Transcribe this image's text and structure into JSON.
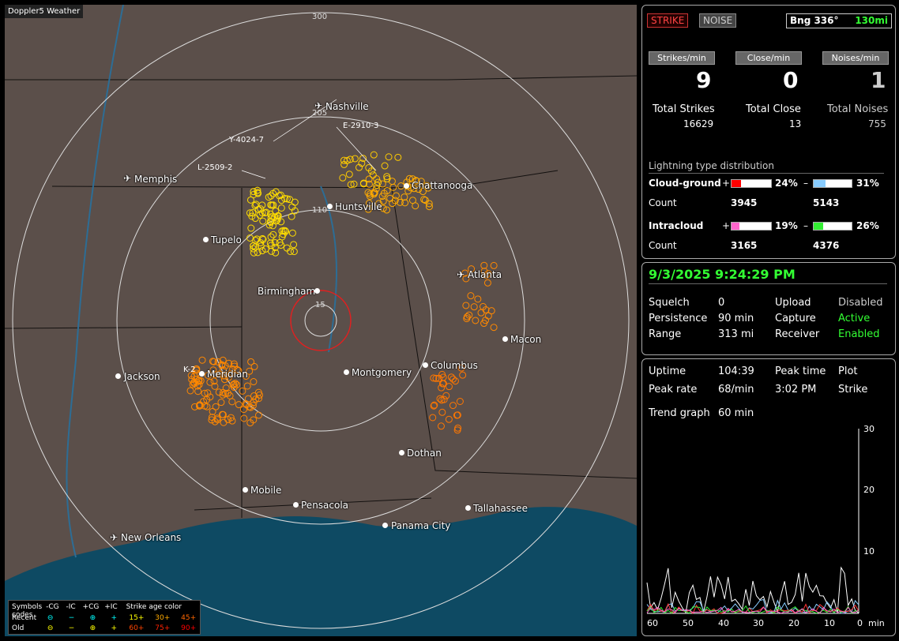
{
  "brand": "Doppler5 Weather",
  "map": {
    "cities": [
      {
        "name": "Nashville",
        "airport": true
      },
      {
        "name": "Memphis",
        "airport": true
      },
      {
        "name": "Huntsville",
        "airport": false
      },
      {
        "name": "Chattanooga",
        "airport": false
      },
      {
        "name": "Tupelo",
        "airport": false
      },
      {
        "name": "Birmingham",
        "airport": false
      },
      {
        "name": "Atlanta",
        "airport": true
      },
      {
        "name": "Macon",
        "airport": false
      },
      {
        "name": "Jackson",
        "airport": false
      },
      {
        "name": "Meridian",
        "airport": false
      },
      {
        "name": "Montgomery",
        "airport": false
      },
      {
        "name": "Columbus",
        "airport": false
      },
      {
        "name": "Dothan",
        "airport": false
      },
      {
        "name": "Mobile",
        "airport": false
      },
      {
        "name": "Pensacola",
        "airport": false
      },
      {
        "name": "Tallahassee",
        "airport": false
      },
      {
        "name": "Panama City",
        "airport": false
      },
      {
        "name": "New Orleans",
        "airport": true
      }
    ],
    "range_labels": [
      "300",
      "205",
      "110",
      "15"
    ],
    "flight_labels": [
      "Y-4024-7",
      "L-2509-2",
      "E-2910-3",
      "K-2"
    ]
  },
  "legend": {
    "title_symbols": "Symbols",
    "cols": [
      "-CG",
      "-IC",
      "+CG",
      "+IC"
    ],
    "age_title": "Strike age color codes",
    "recent": "Recent",
    "old": "Old",
    "recent_ages": [
      "15+",
      "30+",
      "45+"
    ],
    "old_ages": [
      "60+",
      "75+",
      "90+"
    ],
    "colors_recent": [
      "#ffff00",
      "#ffaa00",
      "#ff6600"
    ],
    "colors_old": [
      "#ff4400",
      "#ff2200",
      "#ff0000"
    ]
  },
  "panel1": {
    "strike_btn": "STRIKE",
    "noise_btn": "NOISE",
    "bearing": "Bng 336°",
    "bearing_dist": "130mi",
    "hdr_strikes": "Strikes/min",
    "hdr_close": "Close/min",
    "hdr_noises": "Noises/min",
    "strikes_min": "9",
    "close_min": "0",
    "noises_min": "1",
    "total_strikes_lbl": "Total Strikes",
    "total_close_lbl": "Total Close",
    "total_noises_lbl": "Total Noises",
    "total_strikes": "16629",
    "total_close": "13",
    "total_noises": "755",
    "dist_title": "Lightning type distribution",
    "cg_lbl": "Cloud-ground",
    "cg_pos_pct": "24%",
    "cg_neg_pct": "31%",
    "count_lbl": "Count",
    "cg_pos_count": "3945",
    "cg_neg_count": "5143",
    "ic_lbl": "Intracloud",
    "ic_pos_pct": "19%",
    "ic_neg_pct": "26%",
    "ic_pos_count": "3165",
    "ic_neg_count": "4376",
    "plus": "+",
    "minus": "–",
    "bar_levels": {
      "cg_pos": 0.24,
      "cg_neg": 0.31,
      "ic_pos": 0.19,
      "ic_neg": 0.26
    },
    "bar_colors": {
      "cg_pos": "#ff0000",
      "cg_neg": "#88ccff",
      "ic_pos": "#ff66cc",
      "ic_neg": "#33ee33"
    }
  },
  "panel2": {
    "datetime": "9/3/2025 9:24:29 PM",
    "squelch_lbl": "Squelch",
    "squelch": "0",
    "upload_lbl": "Upload",
    "upload": "Disabled",
    "persist_lbl": "Persistence",
    "persist": "90 min",
    "capture_lbl": "Capture",
    "capture": "Active",
    "range_lbl": "Range",
    "range": "313 mi",
    "receiver_lbl": "Receiver",
    "receiver": "Enabled"
  },
  "panel3": {
    "uptime_lbl": "Uptime",
    "uptime": "104:39",
    "peaktime_lbl": "Peak time",
    "plot_lbl": "Plot",
    "peakrate_lbl": "Peak rate",
    "peakrate": "68/min",
    "peaktime": "3:02 PM",
    "plot": "Strike",
    "trend_lbl": "Trend graph",
    "trend": "60 min",
    "y_ticks": [
      "30",
      "20",
      "10"
    ],
    "x_ticks": [
      "60",
      "50",
      "40",
      "30",
      "20",
      "10",
      "0"
    ],
    "x_unit": "min"
  }
}
